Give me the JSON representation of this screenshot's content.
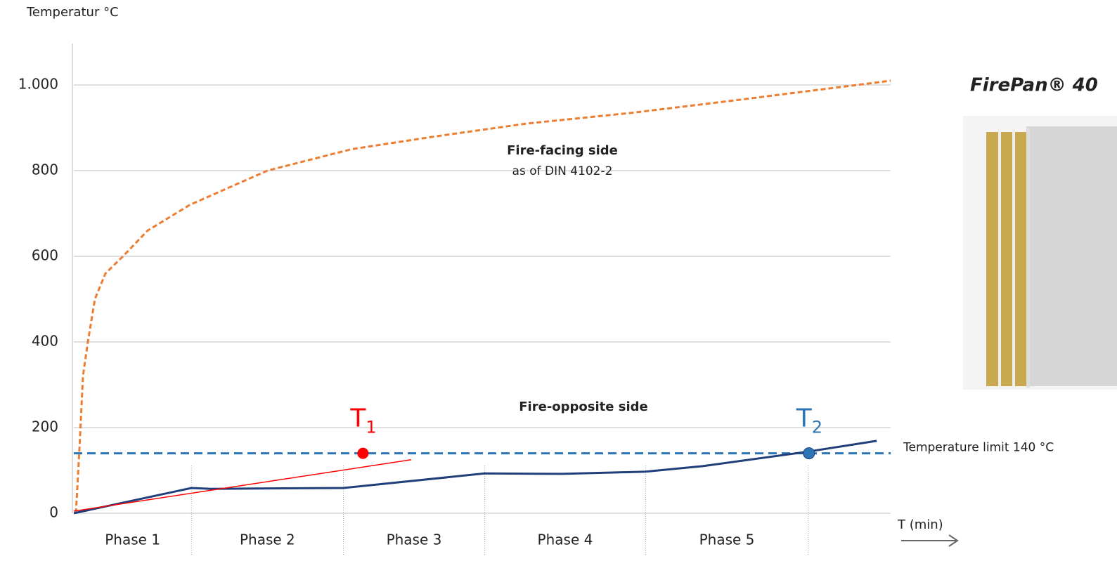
{
  "chart_data": {
    "type": "line",
    "y_label": "Temperatur °C",
    "x_label": "T (min)",
    "ylim": [
      0,
      1100
    ],
    "yticks": [
      0,
      200,
      400,
      600,
      800,
      {
        "value": 1000,
        "label": "1.000"
      }
    ],
    "xlim": [
      0,
      100
    ],
    "grid": true,
    "series": [
      {
        "color": "#ed7d31",
        "dashed": true,
        "x": [
          0.26,
          0.69,
          1.12,
          1.72,
          2.58,
          3.87,
          6.02,
          9.04,
          14.2,
          23.7,
          34.0,
          44.3,
          55.5,
          68.4,
          81.3,
          100
        ],
        "values": [
          0,
          150,
          320,
          400,
          500,
          560,
          600,
          660,
          720,
          800,
          850,
          880,
          910,
          935,
          965,
          1010
        ]
      },
      {
        "color": "#203f7a",
        "dashed": false,
        "x": [
          0,
          14.4,
          16.8,
          33.0,
          50.3,
          59.8,
          70.0,
          77.0,
          89.9,
          98.3
        ],
        "values": [
          0,
          59,
          57,
          59,
          93,
          92,
          97,
          110,
          144,
          169
        ]
      }
    ],
    "tangent": {
      "color": "#ff0000",
      "x": [
        0,
        41.3
      ],
      "values": [
        5,
        125
      ]
    },
    "threshold": {
      "value": 140,
      "label": "Temperature limit 140 °C",
      "color": "#2e75b6"
    },
    "markers": [
      {
        "label": "T",
        "sub": "1",
        "x": 35.4,
        "value": 140,
        "color": "#ff0000"
      },
      {
        "label": "T",
        "sub": "2",
        "x": 90.0,
        "value": 140,
        "color": "#2e75b6"
      }
    ],
    "phases": {
      "labels": [
        "Phase 1",
        "Phase 2",
        "Phase 3",
        "Phase 4",
        "Phase 5"
      ],
      "boundaries": [
        14.4,
        33.0,
        50.3,
        70.0,
        89.9
      ]
    },
    "annotations": {
      "fire_facing": "Fire-facing side",
      "fire_facing_note": "as of DIN 4102-2",
      "fire_opposite": "Fire-opposite side"
    },
    "product": "FirePan® 40"
  }
}
